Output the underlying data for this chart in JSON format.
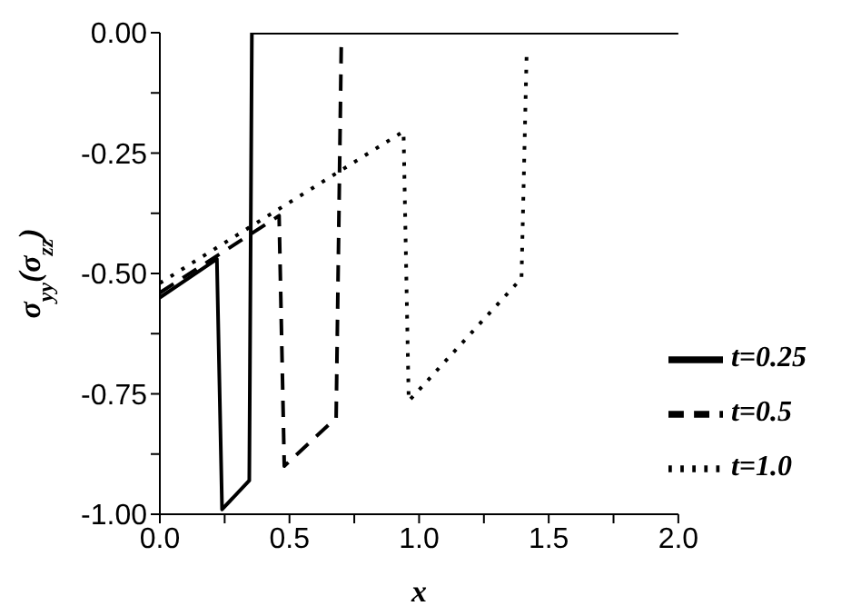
{
  "chart_data": {
    "type": "line",
    "xlabel": "x",
    "ylabel": "σ$_{yy}$(σ$_{zz}$)",
    "xlim": [
      0,
      2
    ],
    "xticks": [
      {
        "value": 0,
        "label": "0.0"
      },
      {
        "value": 0.25,
        "label": null
      },
      {
        "value": 0.5,
        "label": "0.5"
      },
      {
        "value": 0.75,
        "label": null
      },
      {
        "value": 1,
        "label": "1.0"
      },
      {
        "value": 1.25,
        "label": null
      },
      {
        "value": 1.5,
        "label": "1.5"
      },
      {
        "value": 1.75,
        "label": null
      },
      {
        "value": 2,
        "label": "2.0"
      }
    ],
    "ylim": [
      -1,
      0
    ],
    "yticks": [
      {
        "value": -1,
        "label": "-1.00"
      },
      {
        "value": -0.875,
        "label": null
      },
      {
        "value": -0.75,
        "label": "-0.75"
      },
      {
        "value": -0.625,
        "label": null
      },
      {
        "value": -0.5,
        "label": "-0.50"
      },
      {
        "value": -0.375,
        "label": null
      },
      {
        "value": -0.25,
        "label": "-0.25"
      },
      {
        "value": -0.125,
        "label": null
      },
      {
        "value": 0,
        "label": "0.00"
      }
    ],
    "legend": "bottom right",
    "grid": false,
    "marker": "none",
    "series": [
      {
        "name": "t=0.25",
        "color": "#000000",
        "line_style": "solid",
        "x": [
          0,
          0.22,
          0.24,
          0.345,
          0.355,
          2
        ],
        "values": [
          -0.55,
          -0.47,
          -0.99,
          -0.93,
          0,
          0
        ]
      },
      {
        "name": "t=0.5",
        "color": "#000000",
        "line_style": "dashed",
        "x": [
          0,
          0.46,
          0.48,
          0.68,
          0.7
        ],
        "values": [
          -0.54,
          -0.38,
          -0.9,
          -0.8,
          -0.02
        ]
      },
      {
        "name": "t=1.0",
        "color": "#000000",
        "line_style": "dotted",
        "x": [
          0,
          0.94,
          0.96,
          1.395,
          1.415
        ],
        "values": [
          -0.52,
          -0.205,
          -0.765,
          -0.51,
          -0.04
        ]
      }
    ]
  }
}
